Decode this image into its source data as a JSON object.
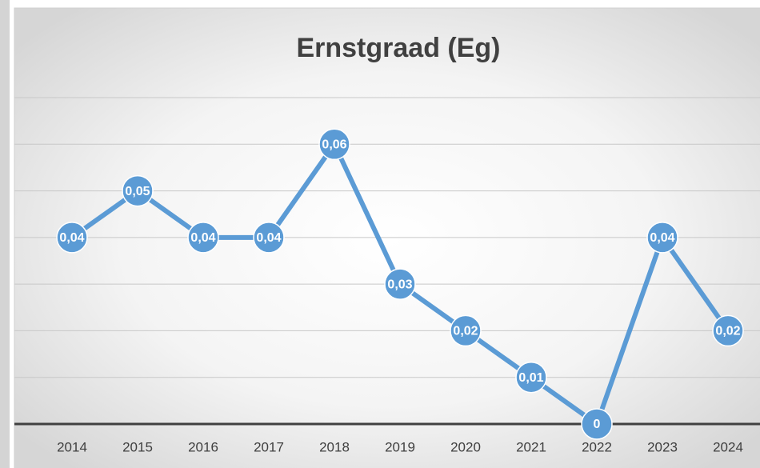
{
  "chart_data": {
    "type": "line",
    "title": "Ernstgraad (Eg)",
    "categories": [
      "2014",
      "2015",
      "2016",
      "2017",
      "2018",
      "2019",
      "2020",
      "2021",
      "2022",
      "2023",
      "2024"
    ],
    "values": [
      0.04,
      0.05,
      0.04,
      0.04,
      0.06,
      0.03,
      0.02,
      0.01,
      0,
      0.04,
      0.02
    ],
    "value_labels": [
      "0,04",
      "0,05",
      "0,04",
      "0,04",
      "0,06",
      "0,03",
      "0,02",
      "0,01",
      "0",
      "0,04",
      "0,02"
    ],
    "color": "#5b9bd5",
    "ylim": [
      0,
      0.07
    ],
    "yticks": [
      0,
      0.01,
      0.02,
      0.03,
      0.04,
      0.05,
      0.06,
      0.07
    ],
    "grid": true
  }
}
